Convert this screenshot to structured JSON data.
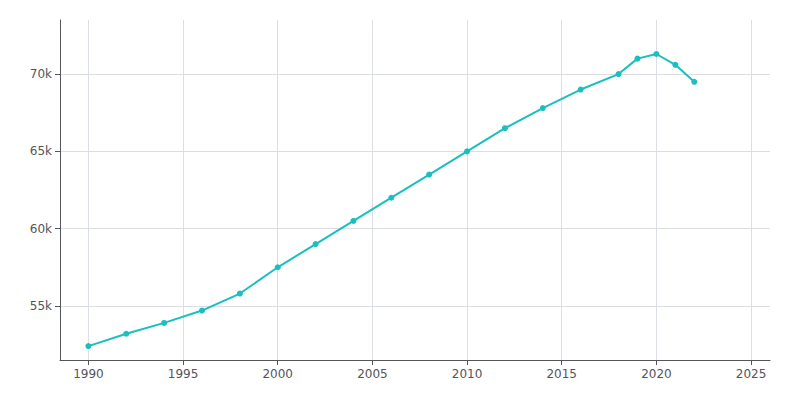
{
  "chart_data": {
    "type": "line",
    "x": [
      1990,
      1992,
      1994,
      1996,
      1998,
      2000,
      2002,
      2004,
      2006,
      2008,
      2010,
      2012,
      2014,
      2016,
      2018,
      2019,
      2020,
      2021,
      2022
    ],
    "values": [
      52400,
      53200,
      53900,
      54700,
      55800,
      57500,
      59000,
      60500,
      62000,
      63500,
      65000,
      66500,
      67800,
      69000,
      70000,
      71000,
      71300,
      70600,
      69500
    ],
    "color": "#1ABFBF",
    "marker": "circle",
    "xlim": [
      1988.5,
      2026
    ],
    "xticks": [
      1990,
      1995,
      2000,
      2005,
      2010,
      2015,
      2020,
      2025
    ],
    "ylim": [
      51500,
      73500
    ],
    "yticks": [
      {
        "value": 55000,
        "label": "55k"
      },
      {
        "value": 60000,
        "label": "60k"
      },
      {
        "value": 65000,
        "label": "65k"
      },
      {
        "value": 70000,
        "label": "70k"
      }
    ],
    "grid": true
  }
}
